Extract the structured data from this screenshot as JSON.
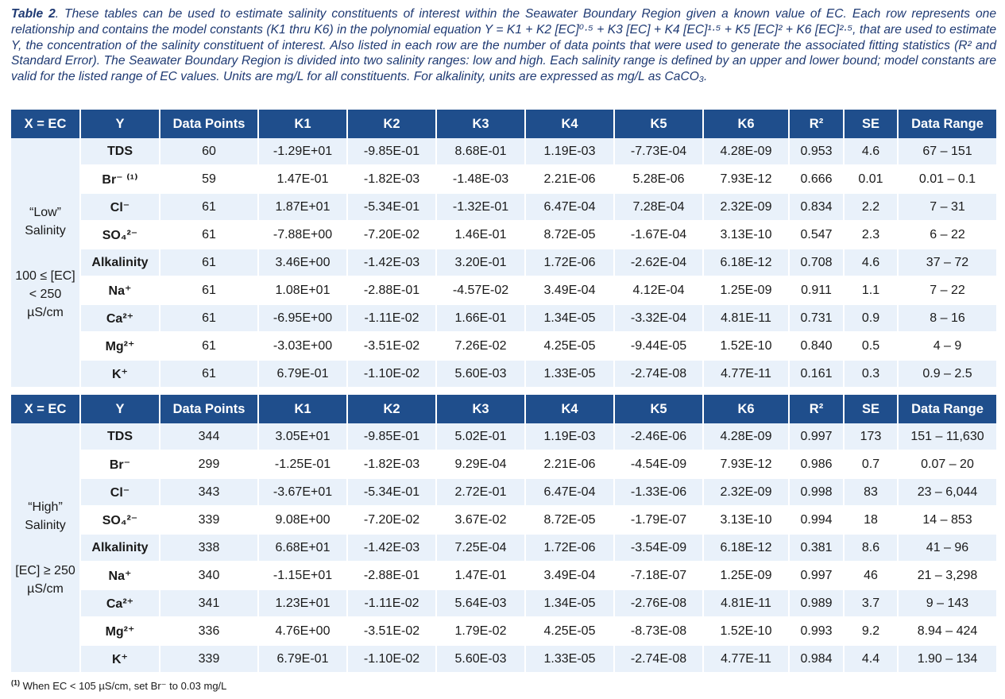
{
  "caption": {
    "label": "Table 2",
    "text": ". These tables can be used to estimate salinity constituents of interest within the Seawater Boundary Region given a known value of EC. Each row represents one relationship and contains the model constants (K1 thru K6) in the polynomial equation Y = K1 + K2 [EC]⁰·⁵ + K3 [EC] + K4 [EC]¹·⁵ + K5 [EC]² + K6 [EC]²·⁵, that are used to estimate Y, the concentration of the salinity constituent of interest. Also listed in each row are the number of data points that were used to generate the associated fitting statistics (R² and Standard Error). The Seawater Boundary Region is divided into two salinity ranges: low and high. Each salinity range is defined by an upper and lower bound; model constants are valid for the listed range of EC values. Units are mg/L for all constituents. For alkalinity, units are expressed as mg/L as CaCO₃."
  },
  "headers": [
    "X = EC",
    "Y",
    "Data Points",
    "K1",
    "K2",
    "K3",
    "K4",
    "K5",
    "K6",
    "R²",
    "SE",
    "Data Range"
  ],
  "low": {
    "name": "“Low” Salinity",
    "range": "100 ≤ [EC] < 250 µS/cm",
    "rows": [
      {
        "y": "TDS",
        "n": "60",
        "k1": "-1.29E+01",
        "k2": "-9.85E-01",
        "k3": "8.68E-01",
        "k4": "1.19E-03",
        "k5": "-7.73E-04",
        "k6": "4.28E-09",
        "r2": "0.953",
        "se": "4.6",
        "range": "67 – 151"
      },
      {
        "y": "Br⁻ ⁽¹⁾",
        "n": "59",
        "k1": "1.47E-01",
        "k2": "-1.82E-03",
        "k3": "-1.48E-03",
        "k4": "2.21E-06",
        "k5": "5.28E-06",
        "k6": "7.93E-12",
        "r2": "0.666",
        "se": "0.01",
        "range": "0.01 – 0.1"
      },
      {
        "y": "Cl⁻",
        "n": "61",
        "k1": "1.87E+01",
        "k2": "-5.34E-01",
        "k3": "-1.32E-01",
        "k4": "6.47E-04",
        "k5": "7.28E-04",
        "k6": "2.32E-09",
        "r2": "0.834",
        "se": "2.2",
        "range": "7 – 31"
      },
      {
        "y": "SO₄²⁻",
        "n": "61",
        "k1": "-7.88E+00",
        "k2": "-7.20E-02",
        "k3": "1.46E-01",
        "k4": "8.72E-05",
        "k5": "-1.67E-04",
        "k6": "3.13E-10",
        "r2": "0.547",
        "se": "2.3",
        "range": "6 – 22"
      },
      {
        "y": "Alkalinity",
        "n": "61",
        "k1": "3.46E+00",
        "k2": "-1.42E-03",
        "k3": "3.20E-01",
        "k4": "1.72E-06",
        "k5": "-2.62E-04",
        "k6": "6.18E-12",
        "r2": "0.708",
        "se": "4.6",
        "range": "37 – 72"
      },
      {
        "y": "Na⁺",
        "n": "61",
        "k1": "1.08E+01",
        "k2": "-2.88E-01",
        "k3": "-4.57E-02",
        "k4": "3.49E-04",
        "k5": "4.12E-04",
        "k6": "1.25E-09",
        "r2": "0.911",
        "se": "1.1",
        "range": "7 – 22"
      },
      {
        "y": "Ca²⁺",
        "n": "61",
        "k1": "-6.95E+00",
        "k2": "-1.11E-02",
        "k3": "1.66E-01",
        "k4": "1.34E-05",
        "k5": "-3.32E-04",
        "k6": "4.81E-11",
        "r2": "0.731",
        "se": "0.9",
        "range": "8 – 16"
      },
      {
        "y": "Mg²⁺",
        "n": "61",
        "k1": "-3.03E+00",
        "k2": "-3.51E-02",
        "k3": "7.26E-02",
        "k4": "4.25E-05",
        "k5": "-9.44E-05",
        "k6": "1.52E-10",
        "r2": "0.840",
        "se": "0.5",
        "range": "4 – 9"
      },
      {
        "y": "K⁺",
        "n": "61",
        "k1": "6.79E-01",
        "k2": "-1.10E-02",
        "k3": "5.60E-03",
        "k4": "1.33E-05",
        "k5": "-2.74E-08",
        "k6": "4.77E-11",
        "r2": "0.161",
        "se": "0.3",
        "range": "0.9 – 2.5"
      }
    ]
  },
  "high": {
    "name": "“High” Salinity",
    "range": "[EC] ≥ 250 µS/cm",
    "rows": [
      {
        "y": "TDS",
        "n": "344",
        "k1": "3.05E+01",
        "k2": "-9.85E-01",
        "k3": "5.02E-01",
        "k4": "1.19E-03",
        "k5": "-2.46E-06",
        "k6": "4.28E-09",
        "r2": "0.997",
        "se": "173",
        "range": "151 – 11,630"
      },
      {
        "y": "Br⁻",
        "n": "299",
        "k1": "-1.25E-01",
        "k2": "-1.82E-03",
        "k3": "9.29E-04",
        "k4": "2.21E-06",
        "k5": "-4.54E-09",
        "k6": "7.93E-12",
        "r2": "0.986",
        "se": "0.7",
        "range": "0.07 – 20"
      },
      {
        "y": "Cl⁻",
        "n": "343",
        "k1": "-3.67E+01",
        "k2": "-5.34E-01",
        "k3": "2.72E-01",
        "k4": "6.47E-04",
        "k5": "-1.33E-06",
        "k6": "2.32E-09",
        "r2": "0.998",
        "se": "83",
        "range": "23 – 6,044"
      },
      {
        "y": "SO₄²⁻",
        "n": "339",
        "k1": "9.08E+00",
        "k2": "-7.20E-02",
        "k3": "3.67E-02",
        "k4": "8.72E-05",
        "k5": "-1.79E-07",
        "k6": "3.13E-10",
        "r2": "0.994",
        "se": "18",
        "range": "14 – 853"
      },
      {
        "y": "Alkalinity",
        "n": "338",
        "k1": "6.68E+01",
        "k2": "-1.42E-03",
        "k3": "7.25E-04",
        "k4": "1.72E-06",
        "k5": "-3.54E-09",
        "k6": "6.18E-12",
        "r2": "0.381",
        "se": "8.6",
        "range": "41 – 96"
      },
      {
        "y": "Na⁺",
        "n": "340",
        "k1": "-1.15E+01",
        "k2": "-2.88E-01",
        "k3": "1.47E-01",
        "k4": "3.49E-04",
        "k5": "-7.18E-07",
        "k6": "1.25E-09",
        "r2": "0.997",
        "se": "46",
        "range": "21 – 3,298"
      },
      {
        "y": "Ca²⁺",
        "n": "341",
        "k1": "1.23E+01",
        "k2": "-1.11E-02",
        "k3": "5.64E-03",
        "k4": "1.34E-05",
        "k5": "-2.76E-08",
        "k6": "4.81E-11",
        "r2": "0.989",
        "se": "3.7",
        "range": "9 – 143"
      },
      {
        "y": "Mg²⁺",
        "n": "336",
        "k1": "4.76E+00",
        "k2": "-3.51E-02",
        "k3": "1.79E-02",
        "k4": "4.25E-05",
        "k5": "-8.73E-08",
        "k6": "1.52E-10",
        "r2": "0.993",
        "se": "9.2",
        "range": "8.94 – 424"
      },
      {
        "y": "K⁺",
        "n": "339",
        "k1": "6.79E-01",
        "k2": "-1.10E-02",
        "k3": "5.60E-03",
        "k4": "1.33E-05",
        "k5": "-2.74E-08",
        "k6": "4.77E-11",
        "r2": "0.984",
        "se": "4.4",
        "range": "1.90 – 134"
      }
    ]
  },
  "footnote": {
    "marker": "(1)",
    "text": "When EC < 105 µS/cm, set Br⁻ to 0.03 mg/L"
  }
}
